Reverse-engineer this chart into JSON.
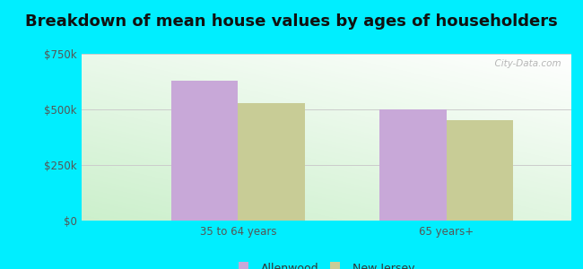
{
  "title": "Breakdown of mean house values by ages of householders",
  "categories": [
    "35 to 64 years",
    "65 years+"
  ],
  "series": [
    {
      "label": "Allenwood",
      "values": [
        630000,
        500000
      ],
      "color": "#c8a8d8"
    },
    {
      "label": "New Jersey",
      "values": [
        530000,
        450000
      ],
      "color": "#c8cc96"
    }
  ],
  "ylim": [
    0,
    750000
  ],
  "yticks": [
    0,
    250000,
    500000,
    750000
  ],
  "ytick_labels": [
    "$0",
    "$250k",
    "$500k",
    "$750k"
  ],
  "bar_width": 0.32,
  "background_outer": "#00eeff",
  "title_fontsize": 13,
  "legend_fontsize": 9,
  "tick_fontsize": 8.5,
  "watermark": "  City-Data.com"
}
